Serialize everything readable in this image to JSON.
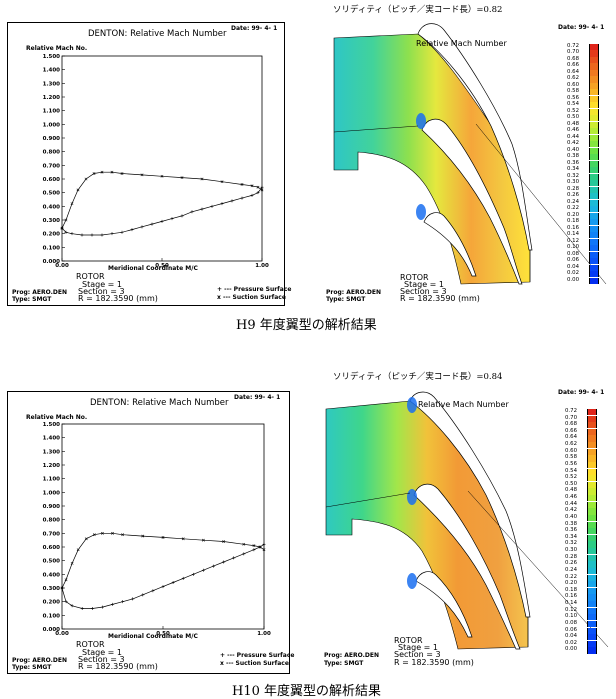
{
  "panels": [
    {
      "caption": "H9 年度翼型の解析結果",
      "solidity_note": "ソリディティ（ピッチ／実コード長）=0.82",
      "line_chart": {
        "title": "DENTON: Relative Mach Number",
        "date": "Date: 99- 4- 1",
        "ylabel": "Relative Mach No.",
        "xlabel": "Meridional Coordinate M/C",
        "rotor": "ROTOR",
        "stage": "Stage =  1",
        "section": "Section =  3",
        "prog": "Prog: AERO.DEN",
        "type": "Type: SMGT",
        "radius": "R      = 182.3590 (mm)",
        "legend": [
          "+ --- Pressure Surface",
          "x --- Suction Surface"
        ]
      },
      "contour": {
        "title": "Relative Mach Number",
        "date": "Date: 99- 4- 1",
        "rotor": "ROTOR",
        "stage": "Stage =  1",
        "section": "Section =  3",
        "prog": "Prog: AERO.DEN",
        "type": "Type: SMGT",
        "radius": "R      = 182.3590 (mm)",
        "scale": [
          "0.72",
          "0.70",
          "0.68",
          "0.66",
          "0.64",
          "0.62",
          "0.60",
          "0.58",
          "0.56",
          "0.54",
          "0.52",
          "0.50",
          "0.48",
          "0.46",
          "0.44",
          "0.42",
          "0.40",
          "0.38",
          "0.36",
          "0.34",
          "0.32",
          "0.30",
          "0.28",
          "0.26",
          "0.24",
          "0.22",
          "0.20",
          "0.18",
          "0.16",
          "0.14",
          "0.12",
          "0.10",
          "0.08",
          "0.06",
          "0.04",
          "0.02",
          "0.00"
        ]
      }
    },
    {
      "caption": "H10 年度翼型の解析結果",
      "solidity_note": "ソリディティ（ピッチ／実コード長）=0.84",
      "line_chart": {
        "title": "DENTON: Relative Mach Number",
        "date": "Date: 99- 4- 1",
        "ylabel": "Relative Mach No.",
        "xlabel": "Meridional Coordinate M/C",
        "rotor": "ROTOR",
        "stage": "Stage =  1",
        "section": "Section =  3",
        "prog": "Prog: AERO.DEN",
        "type": "Type: SMGT",
        "radius": "R      = 182.3590 (mm)",
        "legend": [
          "+ --- Pressure Surface",
          "x --- Suction Surface"
        ]
      },
      "contour": {
        "title": "Relative Mach Number",
        "date": "Date: 99- 4- 1",
        "rotor": "ROTOR",
        "stage": "Stage =  1",
        "section": "Section =  3",
        "prog": "Prog: AERO.DEN",
        "type": "Type: SMGT",
        "radius": "R      = 182.3590 (mm)",
        "scale": [
          "0.72",
          "0.70",
          "0.68",
          "0.66",
          "0.64",
          "0.62",
          "0.60",
          "0.58",
          "0.56",
          "0.54",
          "0.52",
          "0.50",
          "0.48",
          "0.46",
          "0.44",
          "0.42",
          "0.40",
          "0.38",
          "0.36",
          "0.34",
          "0.32",
          "0.30",
          "0.28",
          "0.26",
          "0.24",
          "0.22",
          "0.20",
          "0.18",
          "0.16",
          "0.14",
          "0.12",
          "0.10",
          "0.08",
          "0.06",
          "0.04",
          "0.02",
          "0.00"
        ]
      }
    }
  ],
  "chart_data": [
    {
      "type": "line",
      "title": "DENTON: Relative Mach Number",
      "xlabel": "Meridional Coordinate M/C",
      "ylabel": "Relative Mach No.",
      "xlim": [
        0,
        1
      ],
      "ylim": [
        0,
        1.5
      ],
      "x_ticks": [
        "0.00",
        "0.50",
        "1.00"
      ],
      "y_ticks": [
        "0.000",
        "0.100",
        "0.200",
        "0.300",
        "0.400",
        "0.500",
        "0.600",
        "0.700",
        "0.800",
        "0.900",
        "1.000",
        "1.100",
        "1.200",
        "1.300",
        "1.400",
        "1.500"
      ],
      "grid": false,
      "legend": "bottom-right",
      "series": [
        {
          "name": "Pressure Surface",
          "marker": "+",
          "x": [
            0.0,
            0.02,
            0.05,
            0.1,
            0.15,
            0.2,
            0.25,
            0.3,
            0.35,
            0.4,
            0.45,
            0.5,
            0.55,
            0.6,
            0.65,
            0.7,
            0.75,
            0.8,
            0.85,
            0.9,
            0.95,
            0.98,
            1.0
          ],
          "y": [
            0.24,
            0.21,
            0.2,
            0.19,
            0.19,
            0.19,
            0.2,
            0.21,
            0.23,
            0.25,
            0.27,
            0.29,
            0.31,
            0.33,
            0.36,
            0.38,
            0.4,
            0.42,
            0.44,
            0.46,
            0.48,
            0.5,
            0.54
          ]
        },
        {
          "name": "Suction Surface",
          "marker": "x",
          "x": [
            0.0,
            0.02,
            0.05,
            0.08,
            0.12,
            0.16,
            0.2,
            0.25,
            0.3,
            0.4,
            0.5,
            0.6,
            0.7,
            0.8,
            0.9,
            0.95,
            0.98,
            1.0
          ],
          "y": [
            0.24,
            0.3,
            0.42,
            0.52,
            0.6,
            0.64,
            0.65,
            0.65,
            0.64,
            0.63,
            0.62,
            0.61,
            0.6,
            0.58,
            0.56,
            0.55,
            0.54,
            0.52
          ]
        }
      ]
    },
    {
      "type": "line",
      "title": "DENTON: Relative Mach Number",
      "xlabel": "Meridional Coordinate M/C",
      "ylabel": "Relative Mach No.",
      "xlim": [
        0,
        1
      ],
      "ylim": [
        0,
        1.5
      ],
      "x_ticks": [
        "0.00",
        "0.50",
        "1.00"
      ],
      "y_ticks": [
        "0.000",
        "0.100",
        "0.200",
        "0.300",
        "0.400",
        "0.500",
        "0.600",
        "0.700",
        "0.800",
        "0.900",
        "1.000",
        "1.100",
        "1.200",
        "1.300",
        "1.400",
        "1.500"
      ],
      "grid": false,
      "legend": "bottom-right",
      "series": [
        {
          "name": "Pressure Surface",
          "marker": "+",
          "x": [
            0.0,
            0.02,
            0.05,
            0.1,
            0.15,
            0.2,
            0.25,
            0.3,
            0.35,
            0.4,
            0.45,
            0.5,
            0.55,
            0.6,
            0.65,
            0.7,
            0.75,
            0.8,
            0.85,
            0.9,
            0.95,
            0.98,
            1.0
          ],
          "y": [
            0.3,
            0.2,
            0.17,
            0.15,
            0.15,
            0.16,
            0.18,
            0.2,
            0.22,
            0.25,
            0.28,
            0.31,
            0.34,
            0.37,
            0.4,
            0.43,
            0.46,
            0.49,
            0.52,
            0.55,
            0.58,
            0.6,
            0.62
          ]
        },
        {
          "name": "Suction Surface",
          "marker": "x",
          "x": [
            0.0,
            0.02,
            0.05,
            0.08,
            0.12,
            0.16,
            0.2,
            0.25,
            0.3,
            0.4,
            0.5,
            0.6,
            0.7,
            0.8,
            0.9,
            0.95,
            0.98,
            1.0
          ],
          "y": [
            0.3,
            0.36,
            0.48,
            0.58,
            0.66,
            0.69,
            0.7,
            0.7,
            0.69,
            0.68,
            0.67,
            0.66,
            0.65,
            0.64,
            0.62,
            0.61,
            0.6,
            0.58
          ]
        }
      ]
    }
  ]
}
